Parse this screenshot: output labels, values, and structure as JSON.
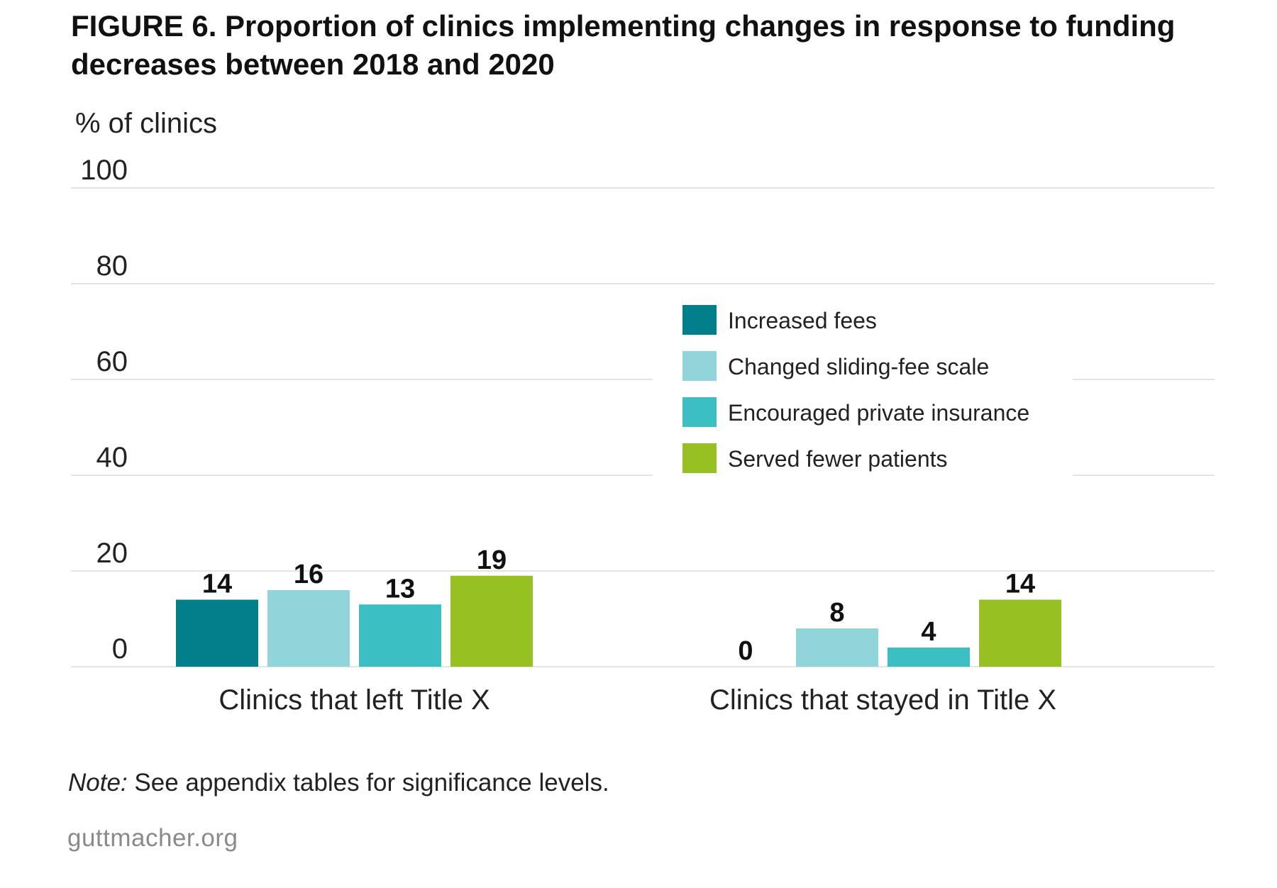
{
  "figure": {
    "title": "FIGURE 6. Proportion of clinics implementing changes in response to funding decreases between 2018 and 2020",
    "note_label": "Note:",
    "note_text": " See appendix tables for significance levels.",
    "source": "guttmacher.org"
  },
  "chart_data": {
    "type": "bar",
    "title": "FIGURE 6. Proportion of clinics implementing changes in response to funding decreases between 2018 and 2020",
    "ylabel": "% of clinics",
    "xlabel": "",
    "ylim": [
      0,
      100
    ],
    "yticks": [
      0,
      20,
      40,
      60,
      80,
      100
    ],
    "grid": true,
    "legend_position": "right",
    "categories": [
      "Clinics that left Title X",
      "Clinics that stayed in Title X"
    ],
    "series": [
      {
        "name": "Increased fees",
        "color": "#037f8c",
        "values": [
          14,
          0
        ]
      },
      {
        "name": "Changed sliding-fee scale",
        "color": "#91d5da",
        "values": [
          16,
          8
        ]
      },
      {
        "name": "Encouraged private insurance",
        "color": "#3bbfc3",
        "values": [
          13,
          4
        ]
      },
      {
        "name": "Served fewer patients",
        "color": "#97c123",
        "values": [
          19,
          14
        ]
      }
    ],
    "data_labels": true
  }
}
